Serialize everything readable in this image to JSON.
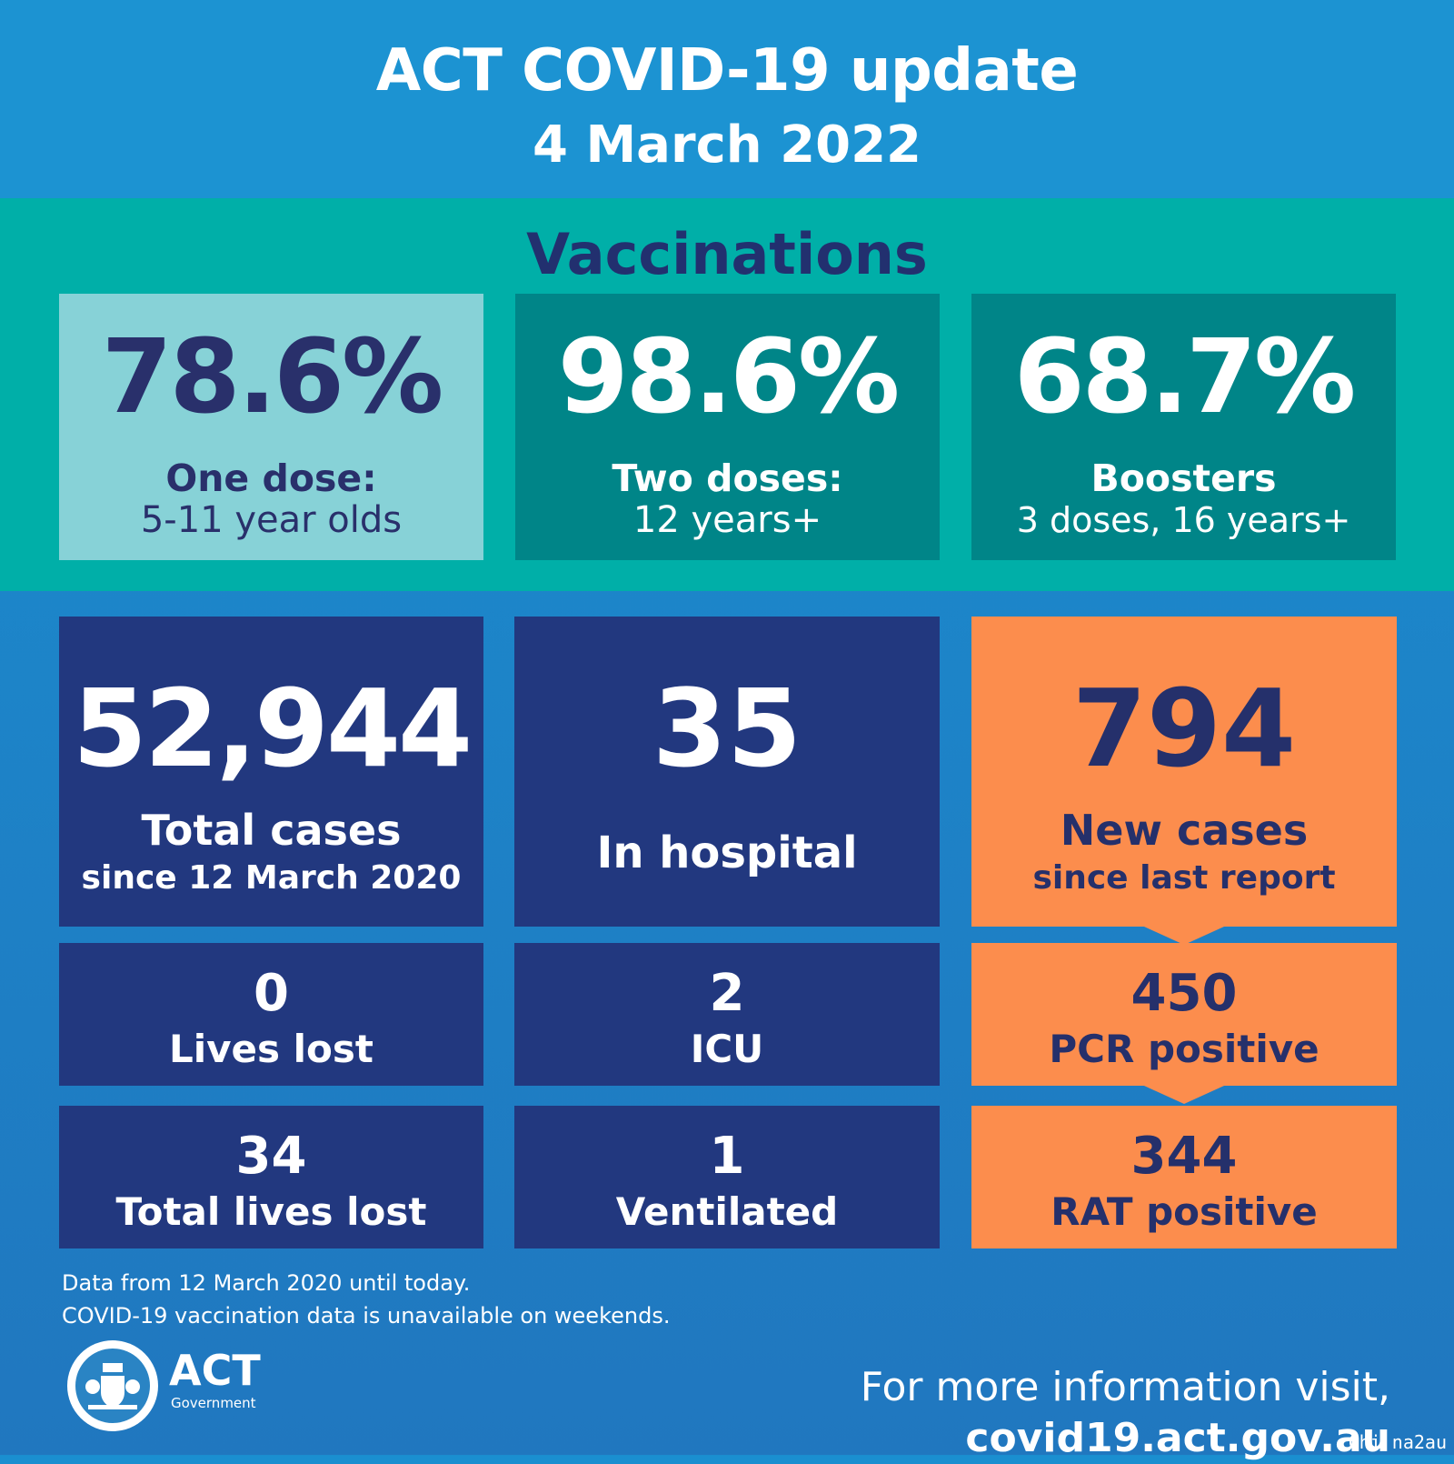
{
  "header": {
    "title": "ACT COVID-19 update",
    "date": "4 March 2022"
  },
  "vaccinations": {
    "heading": "Vaccinations",
    "cards": [
      {
        "value": "78.6%",
        "line1": "One dose:",
        "line2": "5-11 year olds"
      },
      {
        "value": "98.6%",
        "line1": "Two doses:",
        "line2": "12 years+"
      },
      {
        "value": "68.7%",
        "line1": "Boosters",
        "line2": "3 doses, 16 years+"
      }
    ]
  },
  "stats": {
    "total_cases": {
      "value": "52,944",
      "line1": "Total cases",
      "line2": "since 12 March 2020"
    },
    "in_hospital": {
      "value": "35",
      "line1": "In hospital"
    },
    "new_cases": {
      "value": "794",
      "line1": "New cases",
      "line2": "since last report"
    },
    "lives_lost": {
      "value": "0",
      "label": "Lives lost"
    },
    "icu": {
      "value": "2",
      "label": "ICU"
    },
    "pcr": {
      "value": "450",
      "label": "PCR positive"
    },
    "total_lives_lost": {
      "value": "34",
      "label": "Total lives lost"
    },
    "ventilated": {
      "value": "1",
      "label": "Ventilated"
    },
    "rat": {
      "value": "344",
      "label": "RAT positive"
    }
  },
  "notes": [
    "Data from 12 March 2020 until today.",
    "COVID-19 vaccination data is unavailable on weekends."
  ],
  "logo": {
    "name": "ACT",
    "sub": "Government"
  },
  "footer": {
    "prefix": "For more information visit, ",
    "url": "covid19.act.gov.au"
  },
  "watermark": "Chi na2au",
  "colors": {
    "header_blue": "#1c93d2",
    "teal_band": "#00afa8",
    "light_teal_card": "#87d2d7",
    "dark_teal_card": "#008588",
    "navy_card": "#22387f",
    "orange_card": "#fc8d4d",
    "dark_text": "#25306b"
  }
}
